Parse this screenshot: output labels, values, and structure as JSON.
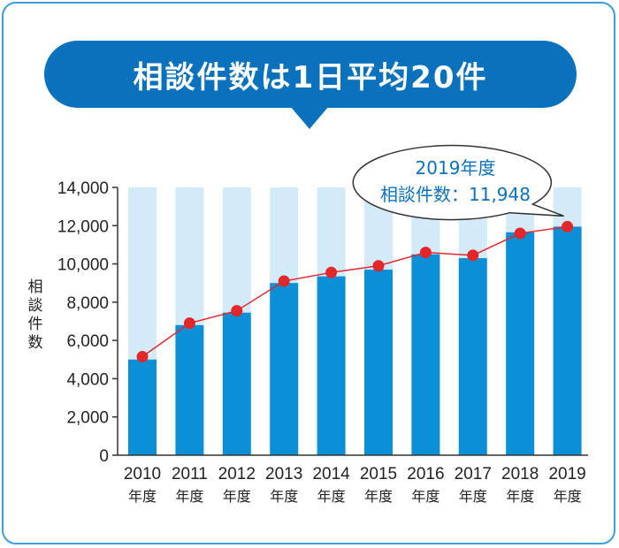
{
  "banner": {
    "title": "相談件数は1日平均20件"
  },
  "colors": {
    "frame": "#3b9ed8",
    "banner": "#0a72bd",
    "bar": "#0b8fd6",
    "bar_background": "#d3ebf8",
    "line": "#e2262a",
    "marker": "#e2262a",
    "callout_text": "#0a72bd"
  },
  "callout": {
    "line1": "2019年度",
    "line2": "相談件数：11,948"
  },
  "chart_data": {
    "type": "bar",
    "categories": [
      "2010",
      "2011",
      "2012",
      "2013",
      "2014",
      "2015",
      "2016",
      "2017",
      "2018",
      "2019"
    ],
    "category_sub": "年度",
    "series": [
      {
        "values": [
          5000,
          6800,
          7450,
          9000,
          9350,
          9700,
          10500,
          10300,
          11650,
          11948
        ]
      },
      {
        "values": [
          5150,
          6900,
          7550,
          9100,
          9550,
          9900,
          10600,
          10450,
          11600,
          11948
        ]
      }
    ],
    "ylabel": "相談件数",
    "ylim": [
      0,
      14000
    ],
    "yticks": [
      0,
      2000,
      4000,
      6000,
      8000,
      10000,
      12000,
      14000
    ],
    "ytick_labels": [
      "0",
      "2,000",
      "4,000",
      "6,000",
      "8,000",
      "10,000",
      "12,000",
      "14,000"
    ],
    "background_bars_to_max": true,
    "grid": false
  }
}
